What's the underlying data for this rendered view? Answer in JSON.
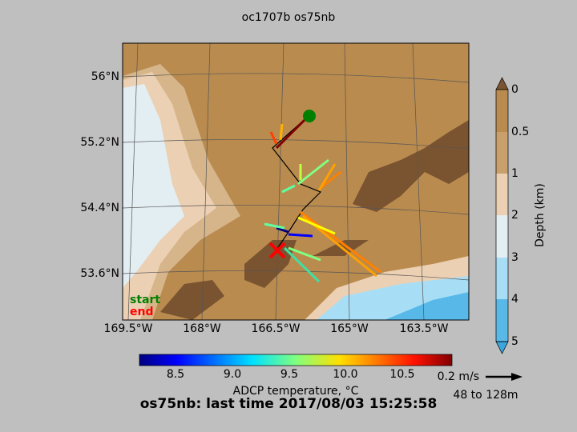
{
  "title": "oc1707b os75nb",
  "map": {
    "lat_labels": [
      "56°N",
      "55.2°N",
      "54.4°N",
      "53.6°N"
    ],
    "lon_labels": [
      "169.5°W",
      "168°W",
      "166.5°W",
      "165°W",
      "163.5°W"
    ],
    "legend": {
      "start": "start",
      "end": "end"
    }
  },
  "depth_colorbar": {
    "label": "Depth (km)",
    "ticks": [
      "0",
      "0.5",
      "1",
      "2",
      "3",
      "4",
      "5"
    ]
  },
  "temperature_colorbar": {
    "label": "ADCP temperature, °C",
    "ticks": [
      "8.5",
      "9.0",
      "9.5",
      "10.0",
      "10.5"
    ]
  },
  "scale": {
    "speed": "0.2 m/s",
    "depth_range": "48 to 128m"
  },
  "footer": "os75nb: last time 2017/08/03 15:25:58"
}
